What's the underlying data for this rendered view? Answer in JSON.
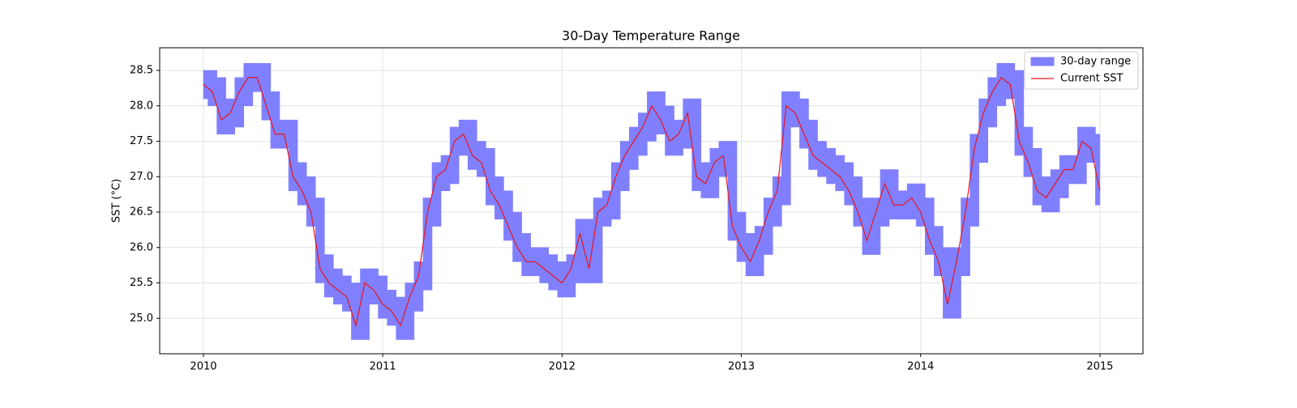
{
  "chart_data": {
    "type": "range_line",
    "title": "30-Day Temperature Range",
    "y_label": "SST (°C)",
    "x": [
      2010,
      2010.05,
      2010.1,
      2010.15,
      2010.2,
      2010.25,
      2010.3,
      2010.35,
      2010.4,
      2010.45,
      2010.5,
      2010.55,
      2010.6,
      2010.65,
      2010.7,
      2010.75,
      2010.8,
      2010.85,
      2010.9,
      2010.95,
      2011,
      2011.05,
      2011.1,
      2011.15,
      2011.2,
      2011.25,
      2011.3,
      2011.35,
      2011.4,
      2011.45,
      2011.5,
      2011.55,
      2011.6,
      2011.65,
      2011.7,
      2011.75,
      2011.8,
      2011.85,
      2011.9,
      2011.95,
      2012,
      2012.05,
      2012.1,
      2012.15,
      2012.2,
      2012.25,
      2012.3,
      2012.35,
      2012.4,
      2012.45,
      2012.5,
      2012.55,
      2012.6,
      2012.65,
      2012.7,
      2012.75,
      2012.8,
      2012.85,
      2012.9,
      2012.95,
      2013,
      2013.05,
      2013.1,
      2013.15,
      2013.2,
      2013.25,
      2013.3,
      2013.35,
      2013.4,
      2013.45,
      2013.5,
      2013.55,
      2013.6,
      2013.65,
      2013.7,
      2013.75,
      2013.8,
      2013.85,
      2013.9,
      2013.95,
      2014,
      2014.05,
      2014.1,
      2014.15,
      2014.2,
      2014.25,
      2014.3,
      2014.35,
      2014.4,
      2014.45,
      2014.5,
      2014.55,
      2014.6,
      2014.65,
      2014.7,
      2014.75,
      2014.8,
      2014.85,
      2014.9,
      2014.95,
      2015
    ],
    "series": [
      {
        "name": "30-day range",
        "color": "#8080ff",
        "lower": [
          28.1,
          28.0,
          27.6,
          27.6,
          27.7,
          28.0,
          28.2,
          27.8,
          27.4,
          27.4,
          26.8,
          26.6,
          26.3,
          25.5,
          25.3,
          25.2,
          25.1,
          24.7,
          24.7,
          25.2,
          25.0,
          24.9,
          24.7,
          24.7,
          25.1,
          25.4,
          26.3,
          26.8,
          26.9,
          27.3,
          27.1,
          27.0,
          26.6,
          26.4,
          26.1,
          25.8,
          25.6,
          25.6,
          25.5,
          25.4,
          25.3,
          25.3,
          25.5,
          25.5,
          25.5,
          26.3,
          26.4,
          26.8,
          27.1,
          27.3,
          27.5,
          27.6,
          27.3,
          27.3,
          27.4,
          26.8,
          26.7,
          26.7,
          27.0,
          26.1,
          25.8,
          25.6,
          25.6,
          25.9,
          26.3,
          26.6,
          27.7,
          27.4,
          27.1,
          27.0,
          26.9,
          26.8,
          26.6,
          26.3,
          25.9,
          25.9,
          26.3,
          26.4,
          26.4,
          26.4,
          26.3,
          25.9,
          25.6,
          25.0,
          25.0,
          25.6,
          26.3,
          27.2,
          27.7,
          28.0,
          28.1,
          27.3,
          27.0,
          26.6,
          26.5,
          26.5,
          26.7,
          26.9,
          26.9,
          27.2,
          26.6
        ],
        "upper": [
          28.5,
          28.5,
          28.4,
          28.1,
          28.4,
          28.6,
          28.6,
          28.6,
          28.2,
          27.8,
          27.8,
          27.2,
          27.0,
          26.7,
          25.9,
          25.7,
          25.6,
          25.5,
          25.7,
          25.7,
          25.6,
          25.4,
          25.3,
          25.5,
          25.8,
          26.7,
          27.2,
          27.3,
          27.7,
          27.8,
          27.8,
          27.5,
          27.4,
          27.0,
          26.8,
          26.5,
          26.2,
          26.0,
          26.0,
          25.9,
          25.8,
          25.9,
          26.4,
          26.4,
          26.7,
          26.8,
          27.2,
          27.5,
          27.7,
          27.9,
          28.2,
          28.2,
          28.0,
          27.8,
          28.1,
          28.1,
          27.2,
          27.4,
          27.5,
          27.5,
          26.5,
          26.2,
          26.3,
          26.7,
          27.0,
          28.2,
          28.2,
          28.1,
          27.8,
          27.5,
          27.4,
          27.3,
          27.2,
          27.0,
          26.7,
          26.7,
          27.1,
          27.1,
          26.8,
          26.9,
          26.9,
          26.7,
          26.3,
          26.0,
          26.0,
          26.7,
          27.6,
          28.1,
          28.4,
          28.6,
          28.6,
          28.5,
          27.7,
          27.4,
          27.0,
          27.1,
          27.3,
          27.3,
          27.7,
          27.7,
          27.6
        ]
      },
      {
        "name": "Current SST",
        "color": "#e8141e",
        "values": [
          28.3,
          28.2,
          27.8,
          27.9,
          28.2,
          28.4,
          28.4,
          28.0,
          27.6,
          27.6,
          27.0,
          26.8,
          26.5,
          25.7,
          25.5,
          25.4,
          25.3,
          24.9,
          25.5,
          25.4,
          25.2,
          25.1,
          24.9,
          25.3,
          25.6,
          26.5,
          27.0,
          27.1,
          27.5,
          27.6,
          27.3,
          27.2,
          26.8,
          26.6,
          26.3,
          26.0,
          25.8,
          25.8,
          25.7,
          25.6,
          25.5,
          25.7,
          26.2,
          25.7,
          26.5,
          26.6,
          27.0,
          27.3,
          27.5,
          27.7,
          28.0,
          27.8,
          27.5,
          27.6,
          27.9,
          27.0,
          26.9,
          27.2,
          27.3,
          26.3,
          26.0,
          25.8,
          26.1,
          26.5,
          26.8,
          28.0,
          27.9,
          27.6,
          27.3,
          27.2,
          27.1,
          27.0,
          26.8,
          26.5,
          26.1,
          26.5,
          26.9,
          26.6,
          26.6,
          26.7,
          26.5,
          26.1,
          25.8,
          25.2,
          25.8,
          26.5,
          27.4,
          27.9,
          28.2,
          28.4,
          28.3,
          27.5,
          27.2,
          26.8,
          26.7,
          26.9,
          27.1,
          27.1,
          27.5,
          27.4,
          26.8
        ]
      }
    ],
    "xlim": [
      2009.756,
      2015.24
    ],
    "xticks": [
      2010,
      2011,
      2012,
      2013,
      2014,
      2015
    ],
    "ylim": [
      24.5,
      28.82
    ],
    "yticks": [
      {
        "value": 25,
        "label": "25.0"
      },
      {
        "value": 25.5,
        "label": "25.5"
      },
      {
        "value": 26,
        "label": "26.0"
      },
      {
        "value": 26.5,
        "label": "26.5"
      },
      {
        "value": 27,
        "label": "27.0"
      },
      {
        "value": 27.5,
        "label": "27.5"
      },
      {
        "value": 28,
        "label": "28.0"
      },
      {
        "value": 28.5,
        "label": "28.5"
      }
    ],
    "grid": true,
    "legend": "upper right"
  }
}
